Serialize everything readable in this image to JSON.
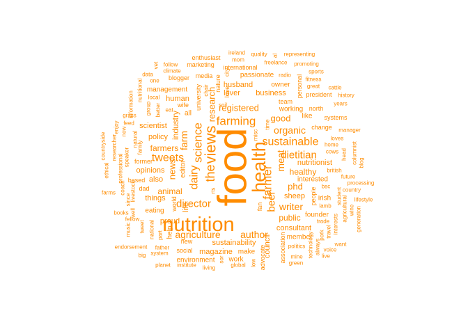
{
  "color": "#ff8c00",
  "words": [
    {
      "text": "food"
    },
    {
      "text": "nutrition"
    },
    {
      "text": "health"
    },
    {
      "text": "views"
    },
    {
      "text": "the"
    },
    {
      "text": "farmer"
    },
    {
      "text": "beef"
    },
    {
      "text": "farming"
    },
    {
      "text": "sustainable"
    },
    {
      "text": "science"
    },
    {
      "text": "research"
    },
    {
      "text": "dietitian"
    },
    {
      "text": "agriculture"
    },
    {
      "text": "author"
    },
    {
      "text": "dairy"
    },
    {
      "text": "tweets"
    },
    {
      "text": "farm"
    },
    {
      "text": "director"
    },
    {
      "text": "meat"
    },
    {
      "text": "organic"
    },
    {
      "text": "registered"
    },
    {
      "text": "writer"
    },
    {
      "text": "phd"
    },
    {
      "text": "healthy"
    },
    {
      "text": "news"
    },
    {
      "text": "good"
    },
    {
      "text": "nutritionist"
    },
    {
      "text": "animal"
    },
    {
      "text": "industry"
    },
    {
      "text": "farmers"
    },
    {
      "text": "public"
    },
    {
      "text": "consultant"
    },
    {
      "text": "husband"
    },
    {
      "text": "lover"
    },
    {
      "text": "business"
    },
    {
      "text": "sustainability"
    },
    {
      "text": "policy"
    },
    {
      "text": "scientist"
    },
    {
      "text": "human"
    },
    {
      "text": "editor"
    },
    {
      "text": "proud"
    },
    {
      "text": "council"
    },
    {
      "text": "magazine"
    },
    {
      "text": "make"
    },
    {
      "text": "interested"
    },
    {
      "text": "sheep"
    },
    {
      "text": "working"
    },
    {
      "text": "opinions"
    },
    {
      "text": "also"
    },
    {
      "text": "things"
    },
    {
      "text": "eating"
    },
    {
      "text": "help"
    },
    {
      "text": "life"
    },
    {
      "text": "world"
    },
    {
      "text": "university"
    },
    {
      "text": "management"
    },
    {
      "text": "passionate"
    },
    {
      "text": "international"
    },
    {
      "text": "owner"
    },
    {
      "text": "all"
    },
    {
      "text": "nature"
    },
    {
      "text": "love"
    },
    {
      "text": "wife"
    },
    {
      "text": "people"
    },
    {
      "text": "member"
    },
    {
      "text": "founder"
    },
    {
      "text": "environment"
    },
    {
      "text": "work"
    },
    {
      "text": "social"
    },
    {
      "text": "new"
    },
    {
      "text": "irish"
    },
    {
      "text": "like"
    },
    {
      "text": "north"
    },
    {
      "text": "change"
    },
    {
      "text": "systems"
    },
    {
      "text": "president"
    },
    {
      "text": "personal"
    },
    {
      "text": "team"
    },
    {
      "text": "former"
    },
    {
      "text": "based"
    },
    {
      "text": "family"
    },
    {
      "text": "natural"
    },
    {
      "text": "grass"
    },
    {
      "text": "feed"
    },
    {
      "text": "group"
    },
    {
      "text": "local"
    },
    {
      "text": "blogger"
    },
    {
      "text": "media"
    },
    {
      "text": "enthusiast"
    },
    {
      "text": "marketing"
    },
    {
      "text": "follow"
    },
    {
      "text": "climate"
    },
    {
      "text": "data"
    },
    {
      "text": "one"
    },
    {
      "text": "eat"
    },
    {
      "text": "better"
    },
    {
      "text": "mom"
    },
    {
      "text": "quality"
    },
    {
      "text": "representing"
    },
    {
      "text": "freelance"
    },
    {
      "text": "promoting"
    },
    {
      "text": "radio"
    },
    {
      "text": "sports"
    },
    {
      "text": "fitness"
    },
    {
      "text": "great"
    },
    {
      "text": "cattle"
    },
    {
      "text": "history"
    },
    {
      "text": "years"
    },
    {
      "text": "manager"
    },
    {
      "text": "loves"
    },
    {
      "text": "home"
    },
    {
      "text": "cows"
    },
    {
      "text": "head"
    },
    {
      "text": "columnist"
    },
    {
      "text": "blog"
    },
    {
      "text": "british"
    },
    {
      "text": "future"
    },
    {
      "text": "processing"
    },
    {
      "text": "country"
    },
    {
      "text": "bsc"
    },
    {
      "text": "student"
    },
    {
      "text": "lamb"
    },
    {
      "text": "trade"
    },
    {
      "text": "lifestyle"
    },
    {
      "text": "agricultural"
    },
    {
      "text": "wine"
    },
    {
      "text": "generation"
    },
    {
      "text": "interests"
    },
    {
      "text": "travel"
    },
    {
      "text": "want"
    },
    {
      "text": "pork"
    },
    {
      "text": "voice"
    },
    {
      "text": "politics"
    },
    {
      "text": "live"
    },
    {
      "text": "always"
    },
    {
      "text": "mine"
    },
    {
      "text": "green"
    },
    {
      "text": "technology"
    },
    {
      "text": "association"
    },
    {
      "text": "advocate"
    },
    {
      "text": "fan"
    },
    {
      "text": "time"
    },
    {
      "text": "misc"
    },
    {
      "text": "soil"
    },
    {
      "text": "chair"
    },
    {
      "text": "city"
    },
    {
      "text": "rts"
    },
    {
      "text": "global"
    },
    {
      "text": "institute"
    },
    {
      "text": "living"
    },
    {
      "text": "planet"
    },
    {
      "text": "father"
    },
    {
      "text": "system"
    },
    {
      "text": "big"
    },
    {
      "text": "endorsement"
    },
    {
      "text": "music"
    },
    {
      "text": "tweet"
    },
    {
      "text": "national"
    },
    {
      "text": "part"
    },
    {
      "text": "fellow"
    },
    {
      "text": "books"
    },
    {
      "text": "farms"
    },
    {
      "text": "well"
    },
    {
      "text": "coach"
    },
    {
      "text": "ethical"
    },
    {
      "text": "livestock"
    },
    {
      "text": "since"
    },
    {
      "text": "professional"
    },
    {
      "text": "speaker"
    },
    {
      "text": "researcher"
    },
    {
      "text": "countryside"
    },
    {
      "text": "enjoy"
    },
    {
      "text": "now"
    },
    {
      "text": "information"
    },
    {
      "text": "nutritional"
    },
    {
      "text": "dad"
    },
    {
      "text": "vet"
    },
    {
      "text": "ireland"
    },
    {
      "text": "sor"
    },
    {
      "text": "low"
    },
    {
      "text": "al"
    }
  ]
}
